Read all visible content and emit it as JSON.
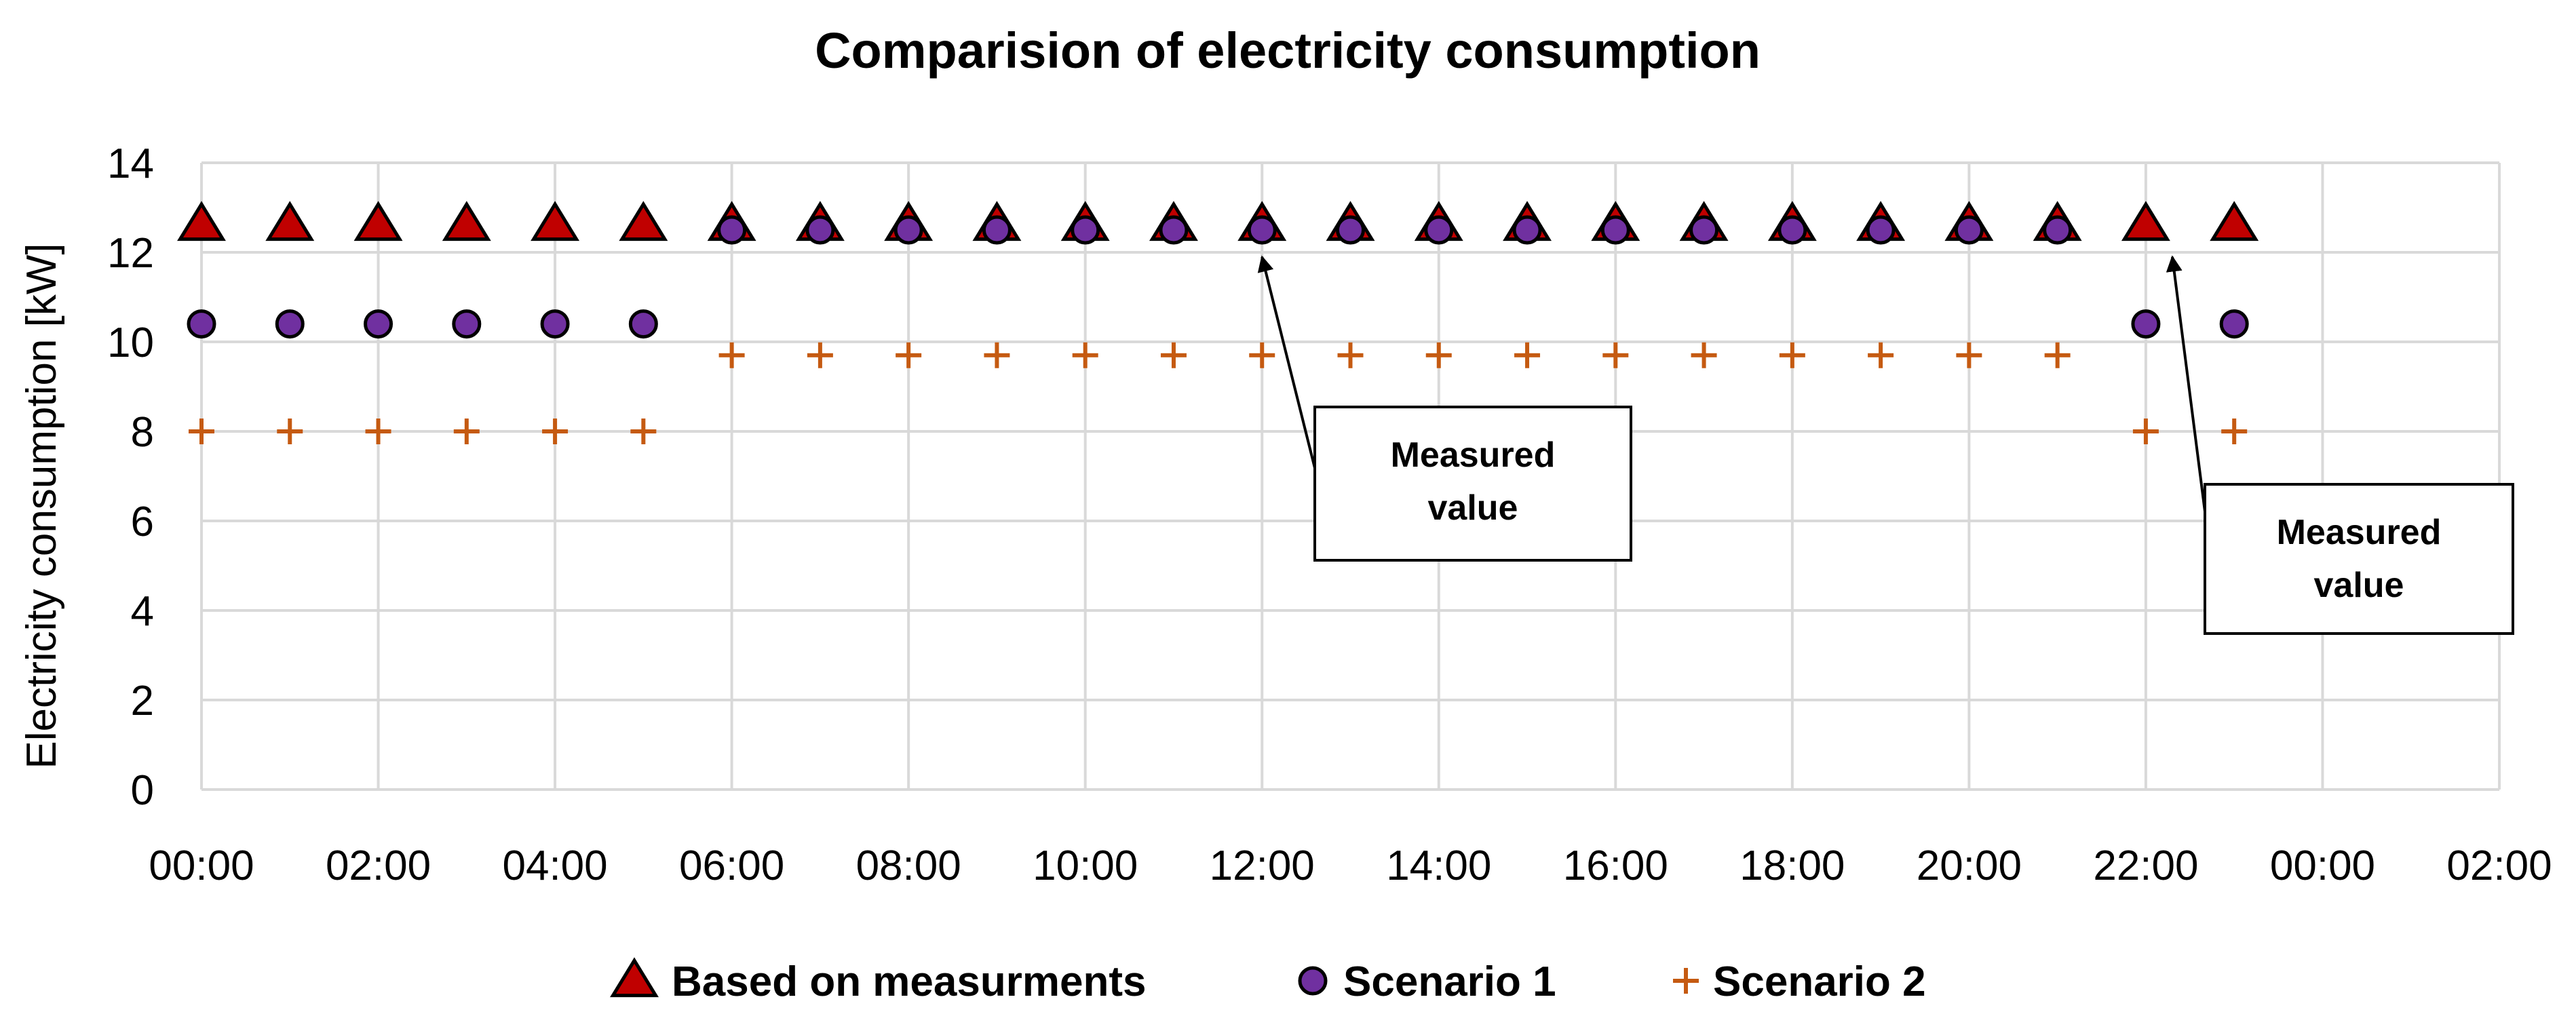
{
  "chart_data": {
    "type": "scatter",
    "title": "Comparision of electricity consumption",
    "xlabel": "",
    "ylabel": "Electricity consumption [kW]",
    "ylim": [
      0,
      14
    ],
    "yticks": [
      0,
      2,
      4,
      6,
      8,
      10,
      12,
      14
    ],
    "xlim_hours": [
      0,
      26
    ],
    "xtick_hours": [
      0,
      2,
      4,
      6,
      8,
      10,
      12,
      14,
      16,
      18,
      20,
      22,
      24,
      26
    ],
    "xtick_labels": [
      "00:00",
      "02:00",
      "04:00",
      "06:00",
      "08:00",
      "10:00",
      "12:00",
      "14:00",
      "16:00",
      "18:00",
      "20:00",
      "22:00",
      "00:00",
      "02:00"
    ],
    "grid": true,
    "legend_position": "bottom",
    "x": [
      0,
      1,
      2,
      3,
      4,
      5,
      6,
      7,
      8,
      9,
      10,
      11,
      12,
      13,
      14,
      15,
      16,
      17,
      18,
      19,
      20,
      21,
      22,
      23
    ],
    "series": [
      {
        "name": "Based on measurments",
        "marker": "triangle",
        "color": "#c00000",
        "values": [
          12.5,
          12.5,
          12.5,
          12.5,
          12.5,
          12.5,
          12.5,
          12.5,
          12.5,
          12.5,
          12.5,
          12.5,
          12.5,
          12.5,
          12.5,
          12.5,
          12.5,
          12.5,
          12.5,
          12.5,
          12.5,
          12.5,
          12.5,
          12.5
        ]
      },
      {
        "name": "Scenario 1",
        "marker": "circle",
        "color": "#7030a0",
        "x": [
          0,
          1,
          2,
          3,
          4,
          5,
          6,
          7,
          8,
          9,
          10,
          11,
          12,
          13,
          14,
          15,
          16,
          17,
          18,
          19,
          20,
          21,
          22,
          23
        ],
        "values": [
          10.4,
          10.4,
          10.4,
          10.4,
          10.4,
          10.4,
          12.5,
          12.5,
          12.5,
          12.5,
          12.5,
          12.5,
          12.5,
          12.5,
          12.5,
          12.5,
          12.5,
          12.5,
          12.5,
          12.5,
          12.5,
          12.5,
          10.4,
          10.4
        ]
      },
      {
        "name": "Scenario 2",
        "marker": "plus",
        "color": "#c55a11",
        "x": [
          0,
          1,
          2,
          3,
          4,
          5,
          6,
          7,
          8,
          9,
          10,
          11,
          12,
          13,
          14,
          15,
          16,
          17,
          18,
          19,
          20,
          21,
          22,
          23
        ],
        "values": [
          8,
          8,
          8,
          8,
          8,
          8,
          9.7,
          9.7,
          9.7,
          9.7,
          9.7,
          9.7,
          9.7,
          9.7,
          9.7,
          9.7,
          9.7,
          9.7,
          9.7,
          9.7,
          9.7,
          9.7,
          8,
          8
        ]
      }
    ],
    "annotations": [
      {
        "line1": "Measured",
        "line2": "value",
        "target_hour": 12,
        "target_value": 12.2
      },
      {
        "line1": "Measured",
        "line2": "value",
        "target_hour": 22.3,
        "target_value": 12.2
      }
    ]
  }
}
